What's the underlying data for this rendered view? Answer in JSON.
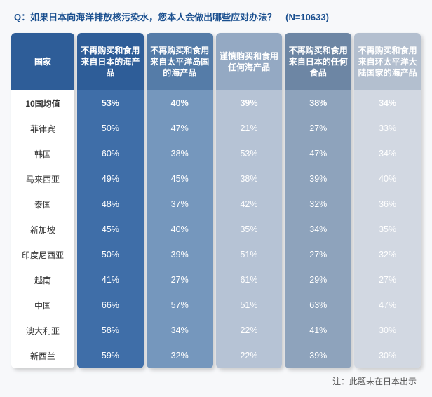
{
  "question": "Q：如果日本向海洋排放核污染水，您本人会做出哪些应对办法？　(N=10633)",
  "note": "注：此题未在日本出示",
  "columns": [
    {
      "header": "国家",
      "header_bg": "#2e5d98",
      "body_bg": "#ffffff",
      "text_color": "#333333"
    },
    {
      "header": "不再购买和食用来自日本的海产品",
      "header_bg": "#2e5d98",
      "body_bg": "#3f6ea8"
    },
    {
      "header": "不再购买和食用来自太平洋岛国的海产品",
      "header_bg": "#557ca8",
      "body_bg": "#7597bd"
    },
    {
      "header": "谨慎购买和食用任何海产品",
      "header_bg": "#94a9c3",
      "body_bg": "#b6c3d5"
    },
    {
      "header": "不再购买和食用来自日本的任何食品",
      "header_bg": "#6d86a4",
      "body_bg": "#8ea3bc"
    },
    {
      "header": "不再购买和食用来自环太平洋大陆国家的海产品",
      "header_bg": "#b3bfcf",
      "body_bg": "#d2d8e2"
    }
  ],
  "rows": [
    {
      "label": "10国均值",
      "avg": true,
      "v": [
        "53%",
        "40%",
        "39%",
        "38%",
        "34%"
      ]
    },
    {
      "label": "菲律宾",
      "v": [
        "50%",
        "47%",
        "21%",
        "27%",
        "33%"
      ]
    },
    {
      "label": "韩国",
      "v": [
        "60%",
        "38%",
        "53%",
        "47%",
        "34%"
      ]
    },
    {
      "label": "马来西亚",
      "v": [
        "49%",
        "45%",
        "38%",
        "39%",
        "40%"
      ]
    },
    {
      "label": "泰国",
      "v": [
        "48%",
        "37%",
        "42%",
        "32%",
        "36%"
      ]
    },
    {
      "label": "新加坡",
      "v": [
        "45%",
        "40%",
        "35%",
        "34%",
        "35%"
      ]
    },
    {
      "label": "印度尼西亚",
      "v": [
        "50%",
        "39%",
        "51%",
        "27%",
        "32%"
      ]
    },
    {
      "label": "越南",
      "v": [
        "41%",
        "27%",
        "61%",
        "29%",
        "27%"
      ]
    },
    {
      "label": "中国",
      "v": [
        "66%",
        "57%",
        "51%",
        "63%",
        "47%"
      ]
    },
    {
      "label": "澳大利亚",
      "v": [
        "58%",
        "34%",
        "22%",
        "41%",
        "30%"
      ]
    },
    {
      "label": "新西兰",
      "v": [
        "59%",
        "32%",
        "22%",
        "39%",
        "30%"
      ]
    }
  ]
}
